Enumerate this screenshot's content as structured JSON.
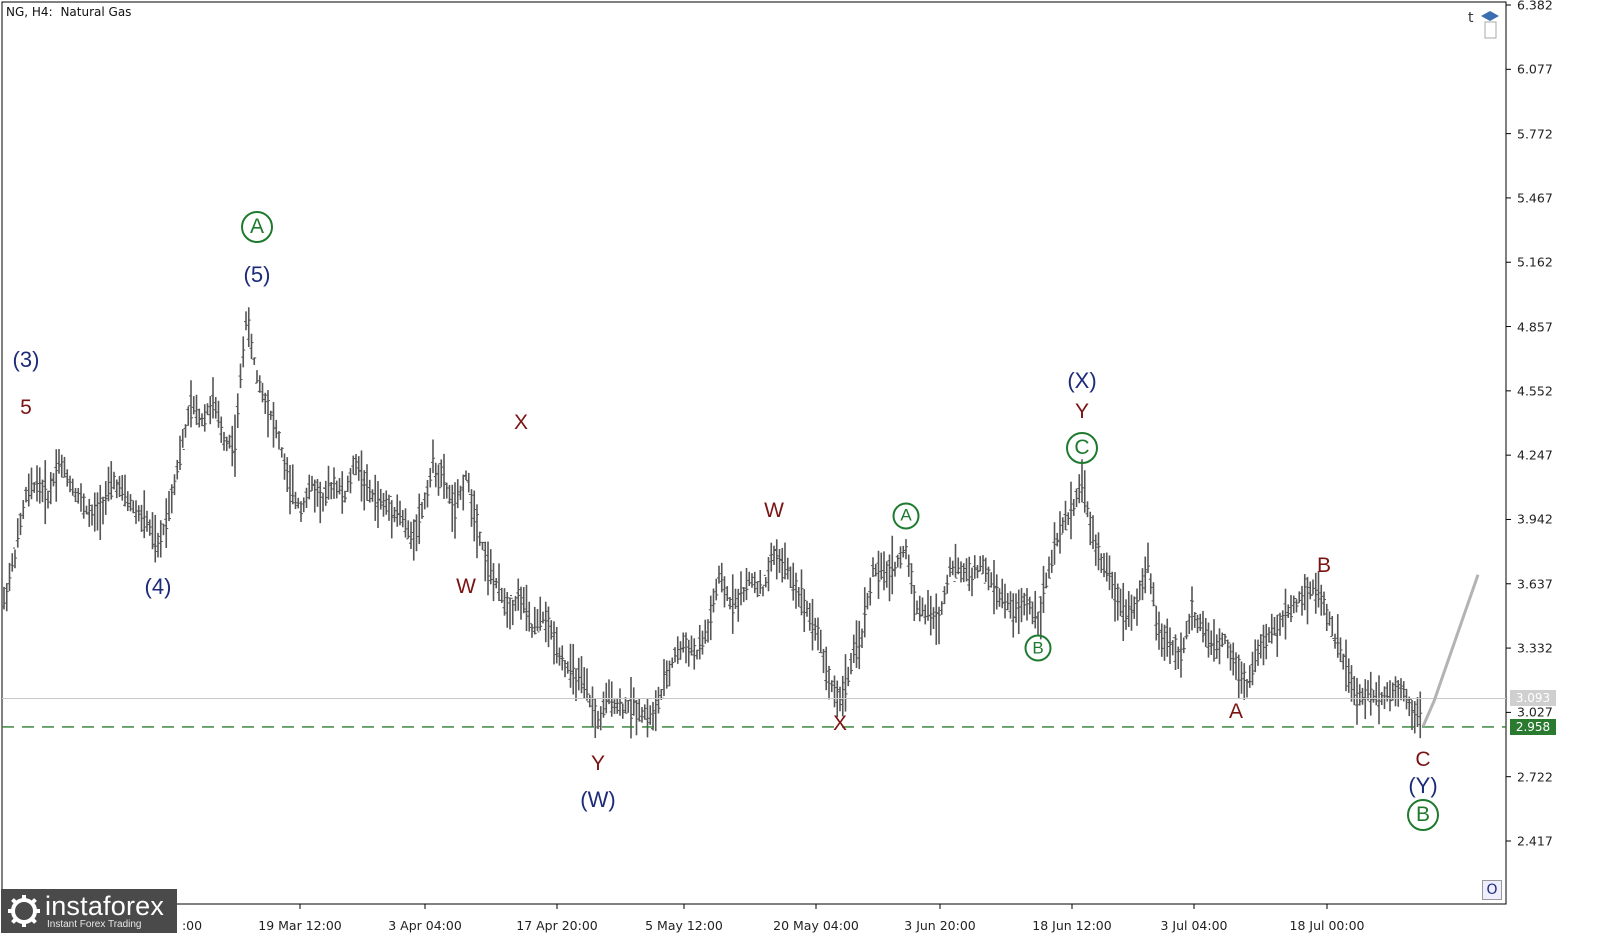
{
  "header": {
    "symbol": "NG, H4:",
    "instrument": "Natural Gas"
  },
  "chart_data": {
    "type": "bar",
    "title": "Natural Gas",
    "subtitle": "NG, H4",
    "y_ticks": [
      "6.382",
      "6.077",
      "5.772",
      "5.467",
      "5.162",
      "4.857",
      "4.552",
      "4.247",
      "3.942",
      "3.637",
      "3.332",
      "3.027",
      "2.722",
      "2.417"
    ],
    "ylim": [
      2.14,
      6.382
    ],
    "x_ticks": [
      "19 Mar 12:00",
      "3 Apr 04:00",
      "17 Apr 20:00",
      "5 May 12:00",
      "20 May 04:00",
      "3 Jun 20:00",
      "18 Jun 12:00",
      "3 Jul 04:00",
      "18 Jul 00:00"
    ],
    "first_x_tick_partial": ":00",
    "current_price": "3.093",
    "support_level": "2.958",
    "price_path": [
      [
        0,
        3.55
      ],
      [
        1,
        3.78
      ],
      [
        2,
        4.05
      ],
      [
        3,
        4.12
      ],
      [
        4,
        4.05
      ],
      [
        5,
        4.22
      ],
      [
        6,
        4.12
      ],
      [
        7,
        4.03
      ],
      [
        8,
        3.95
      ],
      [
        9,
        4.02
      ],
      [
        10,
        4.12
      ],
      [
        11,
        4.05
      ],
      [
        12,
        3.98
      ],
      [
        13,
        3.93
      ],
      [
        14,
        3.8
      ],
      [
        15,
        4.0
      ],
      [
        16,
        4.25
      ],
      [
        17,
        4.48
      ],
      [
        18,
        4.42
      ],
      [
        19,
        4.5
      ],
      [
        20,
        4.32
      ],
      [
        21,
        4.3
      ],
      [
        22,
        4.9
      ],
      [
        23,
        4.62
      ],
      [
        24,
        4.48
      ],
      [
        25,
        4.32
      ],
      [
        26,
        4.08
      ],
      [
        27,
        4.0
      ],
      [
        28,
        4.1
      ],
      [
        29,
        4.03
      ],
      [
        30,
        4.12
      ],
      [
        31,
        4.05
      ],
      [
        32,
        4.22
      ],
      [
        33,
        4.08
      ],
      [
        34,
        4.03
      ],
      [
        35,
        4.0
      ],
      [
        36,
        3.97
      ],
      [
        37,
        3.85
      ],
      [
        38,
        3.98
      ],
      [
        39,
        4.2
      ],
      [
        40,
        4.12
      ],
      [
        41,
        3.98
      ],
      [
        42,
        4.15
      ],
      [
        43,
        3.92
      ],
      [
        44,
        3.72
      ],
      [
        45,
        3.6
      ],
      [
        46,
        3.52
      ],
      [
        47,
        3.58
      ],
      [
        48,
        3.42
      ],
      [
        49,
        3.48
      ],
      [
        50,
        3.38
      ],
      [
        51,
        3.25
      ],
      [
        52,
        3.2
      ],
      [
        53,
        3.12
      ],
      [
        54,
        2.98
      ],
      [
        55,
        3.1
      ],
      [
        56,
        3.05
      ],
      [
        57,
        3.06
      ],
      [
        58,
        3.03
      ],
      [
        59,
        3.0
      ],
      [
        60,
        3.15
      ],
      [
        61,
        3.3
      ],
      [
        62,
        3.35
      ],
      [
        63,
        3.3
      ],
      [
        64,
        3.42
      ],
      [
        65,
        3.66
      ],
      [
        66,
        3.55
      ],
      [
        67,
        3.58
      ],
      [
        68,
        3.66
      ],
      [
        69,
        3.6
      ],
      [
        70,
        3.78
      ],
      [
        71,
        3.72
      ],
      [
        72,
        3.62
      ],
      [
        73,
        3.52
      ],
      [
        74,
        3.4
      ],
      [
        75,
        3.18
      ],
      [
        76,
        3.08
      ],
      [
        77,
        3.25
      ],
      [
        78,
        3.4
      ],
      [
        79,
        3.7
      ],
      [
        80,
        3.68
      ],
      [
        81,
        3.72
      ],
      [
        82,
        3.8
      ],
      [
        83,
        3.52
      ],
      [
        84,
        3.5
      ],
      [
        85,
        3.46
      ],
      [
        86,
        3.72
      ],
      [
        87,
        3.7
      ],
      [
        88,
        3.68
      ],
      [
        89,
        3.72
      ],
      [
        90,
        3.62
      ],
      [
        91,
        3.55
      ],
      [
        92,
        3.5
      ],
      [
        93,
        3.55
      ],
      [
        94,
        3.48
      ],
      [
        95,
        3.7
      ],
      [
        96,
        3.88
      ],
      [
        97,
        3.98
      ],
      [
        98,
        4.12
      ],
      [
        99,
        3.85
      ],
      [
        100,
        3.72
      ],
      [
        101,
        3.6
      ],
      [
        102,
        3.5
      ],
      [
        103,
        3.55
      ],
      [
        104,
        3.72
      ],
      [
        105,
        3.4
      ],
      [
        106,
        3.35
      ],
      [
        107,
        3.3
      ],
      [
        108,
        3.5
      ],
      [
        109,
        3.42
      ],
      [
        110,
        3.32
      ],
      [
        111,
        3.38
      ],
      [
        112,
        3.25
      ],
      [
        113,
        3.16
      ],
      [
        114,
        3.32
      ],
      [
        115,
        3.38
      ],
      [
        116,
        3.45
      ],
      [
        117,
        3.52
      ],
      [
        118,
        3.58
      ],
      [
        119,
        3.62
      ],
      [
        120,
        3.55
      ],
      [
        121,
        3.38
      ],
      [
        122,
        3.25
      ],
      [
        123,
        3.08
      ],
      [
        124,
        3.12
      ],
      [
        125,
        3.1
      ],
      [
        126,
        3.12
      ],
      [
        127,
        3.15
      ],
      [
        128,
        3.05
      ],
      [
        129,
        2.98
      ]
    ],
    "forecast_path": [
      [
        129,
        2.96
      ],
      [
        130,
        3.08
      ],
      [
        134,
        3.68
      ]
    ],
    "annotations": [
      {
        "text": "(3)",
        "kind": "blue",
        "bar": 2,
        "y": 4.7
      },
      {
        "text": "5",
        "kind": "red",
        "bar": 2,
        "y": 4.47
      },
      {
        "text": "(5)",
        "kind": "blue",
        "bar": 23,
        "y": 5.1
      },
      {
        "text": "A",
        "kind": "circle-big",
        "bar": 23,
        "y": 5.33
      },
      {
        "text": "(4)",
        "kind": "blue",
        "bar": 14,
        "y": 3.62
      },
      {
        "text": "W",
        "kind": "red",
        "bar": 42,
        "y": 3.62
      },
      {
        "text": "X",
        "kind": "red",
        "bar": 47,
        "y": 4.4
      },
      {
        "text": "Y",
        "kind": "red",
        "bar": 54,
        "y": 2.78
      },
      {
        "text": "(W)",
        "kind": "blue",
        "bar": 54,
        "y": 2.61
      },
      {
        "text": "W",
        "kind": "red",
        "bar": 70,
        "y": 3.98
      },
      {
        "text": "X",
        "kind": "red",
        "bar": 76,
        "y": 2.97
      },
      {
        "text": "A",
        "kind": "circle-sm",
        "bar": 82,
        "y": 3.96
      },
      {
        "text": "B",
        "kind": "circle-sm",
        "bar": 94,
        "y": 3.33
      },
      {
        "text": "C",
        "kind": "circle-big",
        "bar": 98,
        "y": 4.28
      },
      {
        "text": "Y",
        "kind": "red",
        "bar": 98,
        "y": 4.45
      },
      {
        "text": "(X)",
        "kind": "blue",
        "bar": 98,
        "y": 4.6
      },
      {
        "text": "A",
        "kind": "red",
        "bar": 112,
        "y": 3.03
      },
      {
        "text": "B",
        "kind": "red",
        "bar": 120,
        "y": 3.72
      },
      {
        "text": "C",
        "kind": "red",
        "bar": 129,
        "y": 2.8
      },
      {
        "text": "(Y)",
        "kind": "blue",
        "bar": 129,
        "y": 2.68
      },
      {
        "text": "B",
        "kind": "circle-big",
        "bar": 129,
        "y": 2.54
      }
    ],
    "colors": {
      "bars": "#555555",
      "blue_labels": "#1d2a78",
      "red_labels": "#7a1412",
      "green_circles": "#1e7a2e",
      "support_line": "#2e7d32",
      "forecast": "#b3b3b3"
    },
    "grid": false
  },
  "branding": {
    "name": "instaforex",
    "tagline": "Instant Forex Trading"
  },
  "topright": {
    "letter": "t"
  },
  "corner": {
    "label": "O"
  }
}
